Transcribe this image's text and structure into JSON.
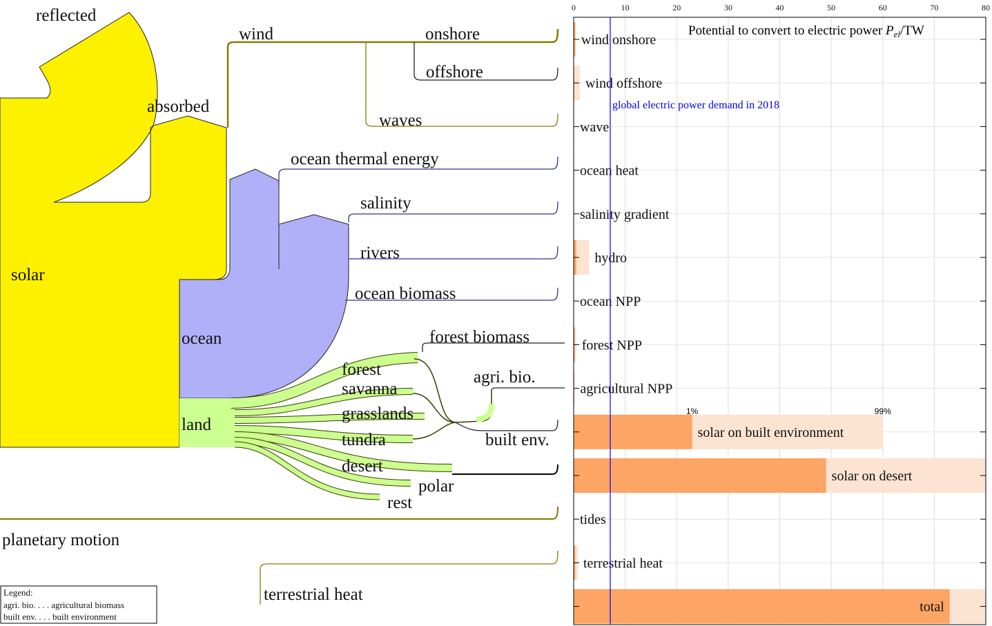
{
  "chart_data": {
    "type": "bar",
    "orientation": "horizontal",
    "title": "Potential to convert to electric power",
    "title_symbol": "P",
    "title_subscript": "el",
    "title_unit": "/TW",
    "categories": [
      "wind onshore",
      "wind offshore",
      "wave",
      "ocean heat",
      "salinity gradient",
      "hydro",
      "ocean NPP",
      "forest NPP",
      "agricultural NPP",
      "solar on built environment",
      "solar on desert",
      "tides",
      "terrestrial heat",
      "total"
    ],
    "series": [
      {
        "color": "#fde3d1",
        "values": [
          0.4,
          1.2,
          0.1,
          0.1,
          0.1,
          3.0,
          0.1,
          0.5,
          0.2,
          60,
          80,
          0.1,
          0.8,
          80
        ]
      },
      {
        "color": "#fca564",
        "values": [
          0.3,
          0.1,
          0.05,
          0,
          0,
          0.5,
          0,
          0.2,
          0.1,
          23,
          49,
          0,
          0.3,
          73
        ]
      }
    ],
    "xlim": [
      0,
      80
    ],
    "xticks": [
      0,
      10,
      20,
      30,
      40,
      50,
      60,
      70,
      80
    ],
    "grid": true,
    "reference_line": {
      "value": 7.1,
      "label": "global electric power demand in 2018",
      "color": "#0000ff"
    },
    "percent_labels": [
      "1%",
      "99%"
    ]
  },
  "diagram": {
    "nodes": [
      "reflected",
      "absorbed",
      "wind",
      "onshore",
      "offshore",
      "waves",
      "ocean thermal energy",
      "salinity",
      "rivers",
      "ocean biomass",
      "solar",
      "ocean",
      "forest biomass",
      "forest",
      "savanna",
      "agri. bio.",
      "grasslands",
      "land",
      "tundra",
      "built env.",
      "desert",
      "polar",
      "rest",
      "planetary motion",
      "terrestrial heat"
    ],
    "legend": {
      "title": "Legend:",
      "entries": [
        "agri. bio. . . . agricultural biomass",
        "built env. . . . built environment"
      ]
    }
  }
}
